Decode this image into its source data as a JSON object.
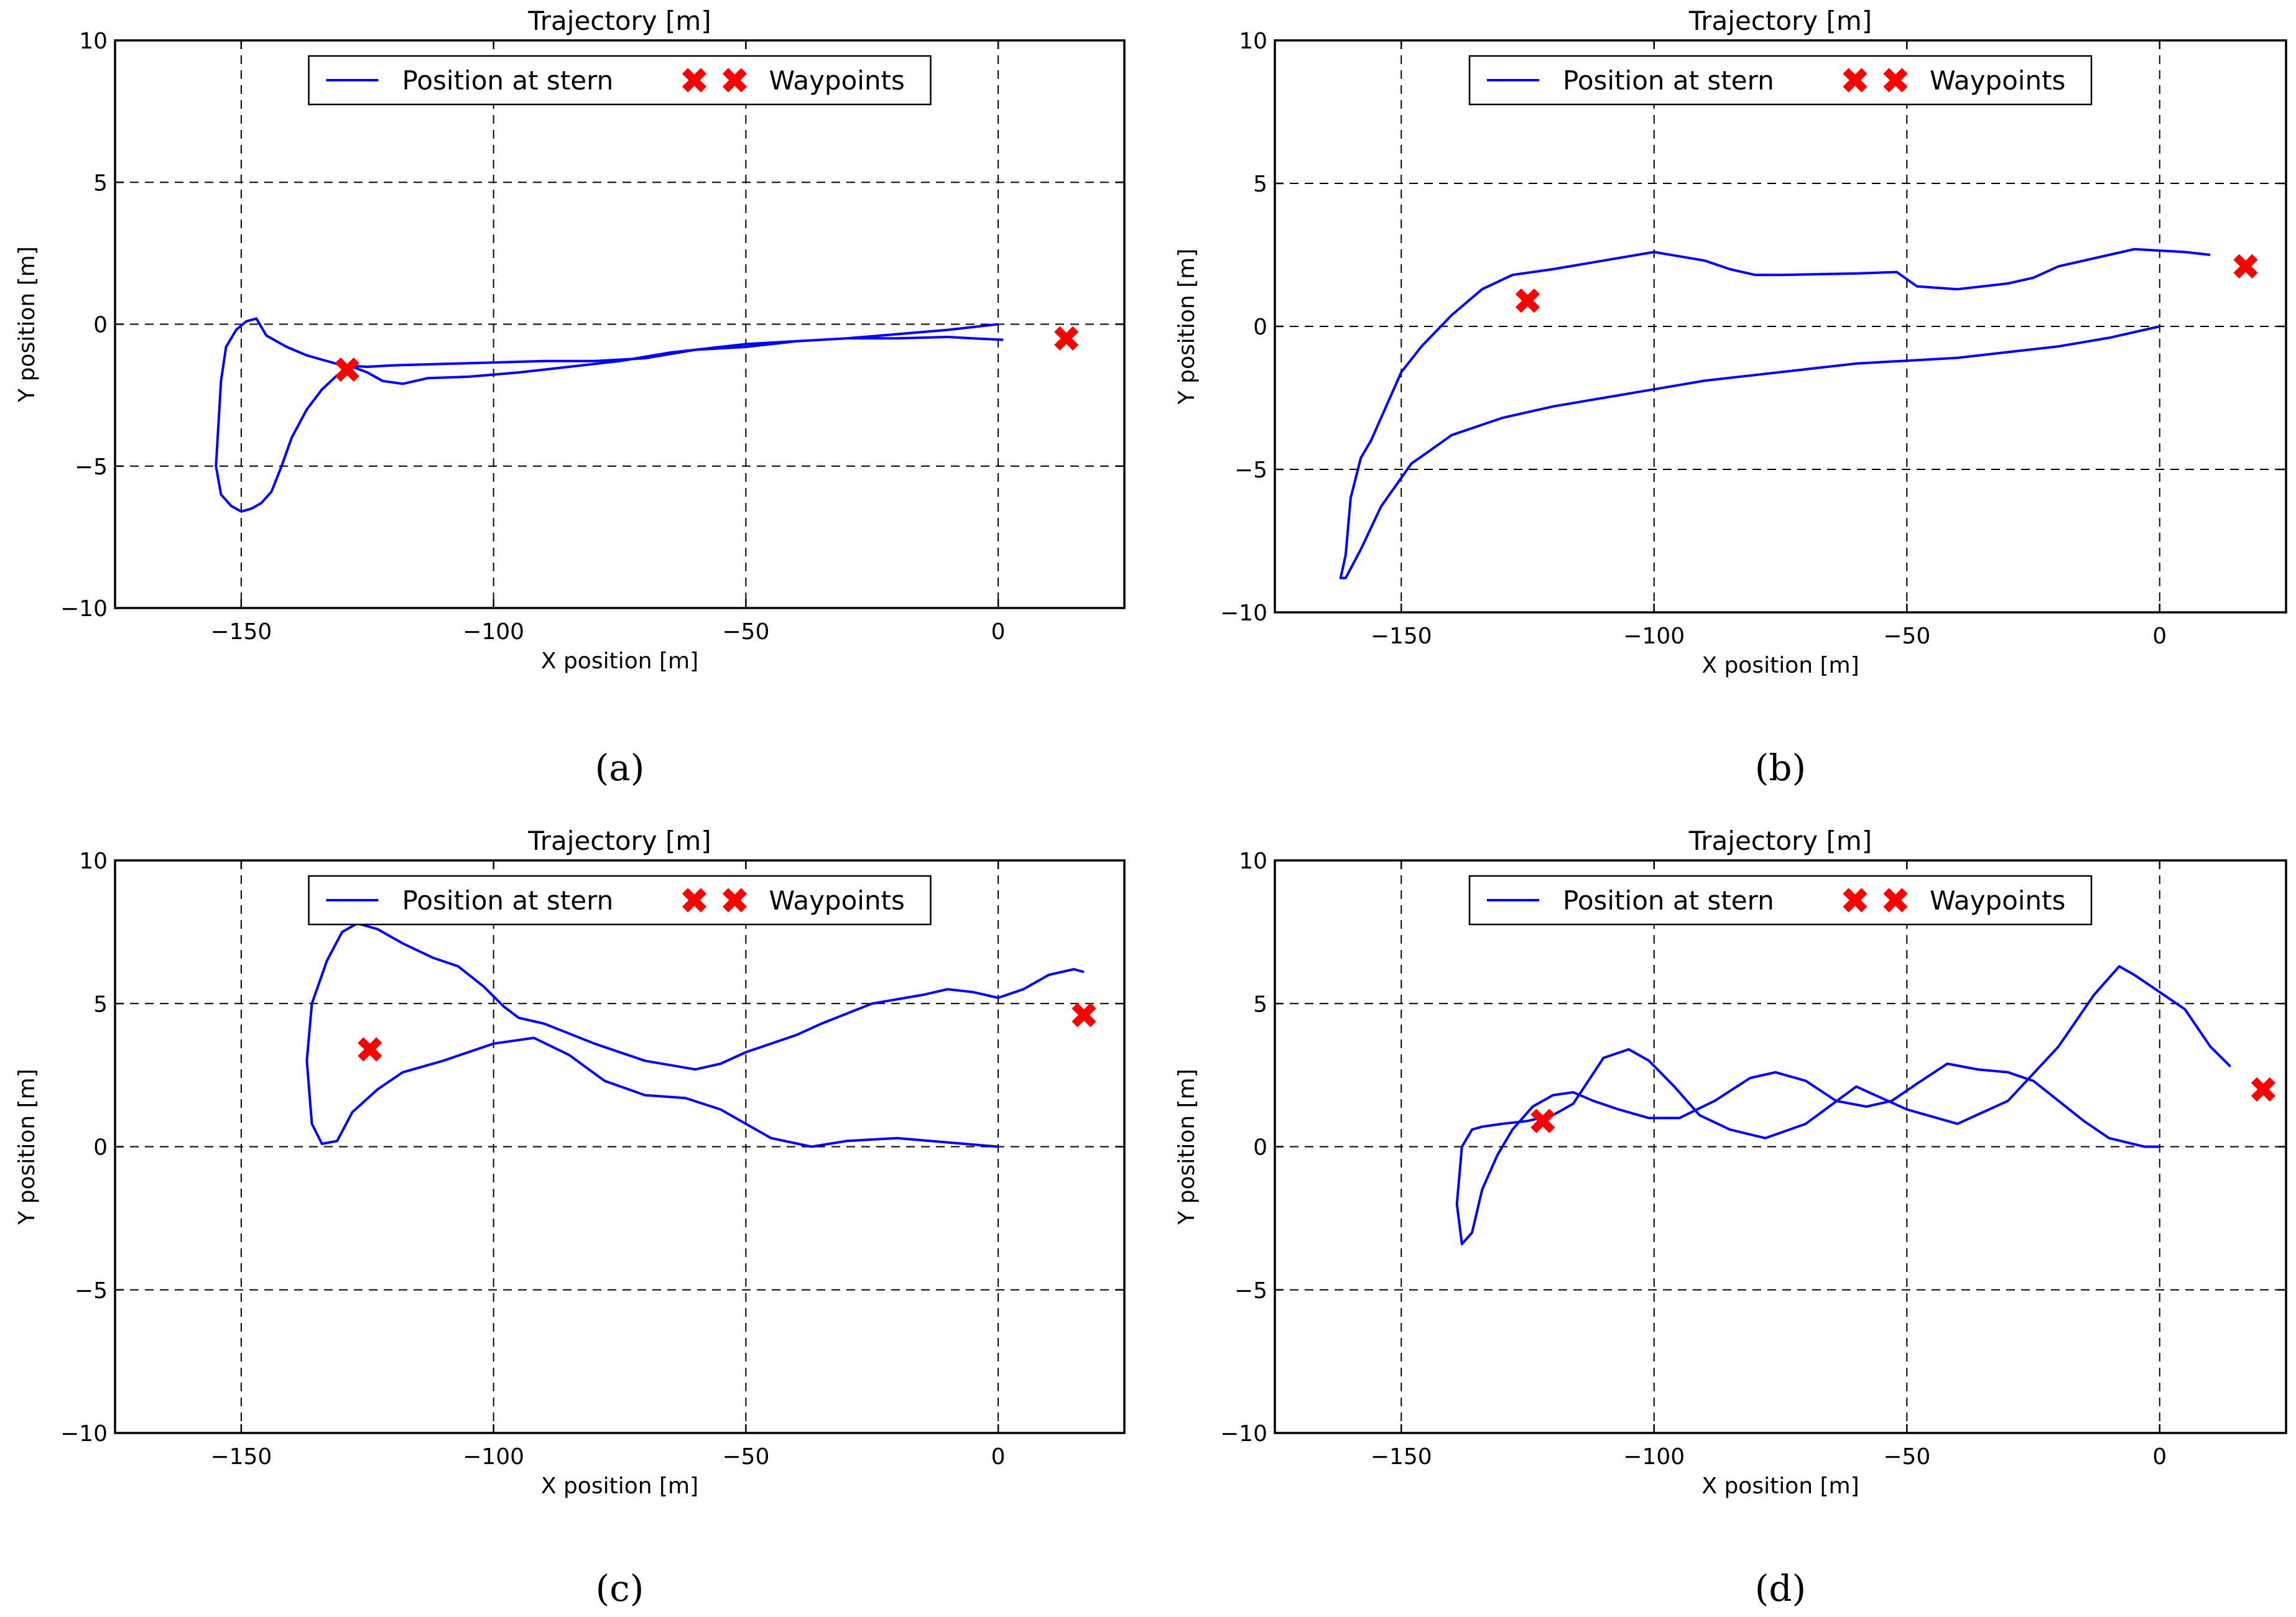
{
  "chart_data": [
    {
      "type": "line",
      "panel_label": "(a)",
      "title": "Trajectory [m]",
      "xlabel": "X position [m]",
      "ylabel": "Y position [m]",
      "xlim": [
        -175,
        25
      ],
      "ylim": [
        -10,
        10
      ],
      "xticks": [
        -150,
        -100,
        -50,
        0
      ],
      "yticks": [
        -10,
        -5,
        0,
        5,
        10
      ],
      "xtick_labels": [
        "−150",
        "−100",
        "−50",
        "0"
      ],
      "ytick_labels": [
        "−10",
        "−5",
        "0",
        "5",
        "10"
      ],
      "grid": true,
      "legend": {
        "placement": "top-center",
        "entries": [
          "Position at stern",
          "Waypoints"
        ]
      },
      "series": [
        {
          "name": "Position at stern",
          "color": "#0000ff",
          "x": [
            0,
            -10,
            -20,
            -30,
            -40,
            -50,
            -60,
            -70,
            -80,
            -90,
            -100,
            -110,
            -120,
            -125,
            -130,
            -133,
            -137,
            -141,
            -145,
            -147,
            -149,
            -151,
            -153,
            -154,
            -155,
            -154,
            -152,
            -150,
            -148,
            -146,
            -144,
            -142,
            -140,
            -137,
            -134,
            -131,
            -128,
            -125,
            -122,
            -118,
            -113,
            -105,
            -95,
            -85,
            -75,
            -65,
            -60,
            -50,
            -40,
            -30,
            -20,
            -10,
            -5,
            1
          ],
          "y": [
            0,
            -0.2,
            -0.35,
            -0.5,
            -0.6,
            -0.7,
            -0.9,
            -1.2,
            -1.3,
            -1.3,
            -1.35,
            -1.4,
            -1.45,
            -1.5,
            -1.45,
            -1.3,
            -1.1,
            -0.8,
            -0.4,
            0.2,
            0.1,
            -0.2,
            -0.8,
            -2.0,
            -5.0,
            -6.0,
            -6.4,
            -6.6,
            -6.5,
            -6.3,
            -5.9,
            -5.0,
            -4.0,
            -3.0,
            -2.3,
            -1.8,
            -1.5,
            -1.7,
            -2.0,
            -2.1,
            -1.9,
            -1.85,
            -1.7,
            -1.5,
            -1.3,
            -1.0,
            -0.9,
            -0.8,
            -0.6,
            -0.5,
            -0.5,
            -0.45,
            -0.5,
            -0.55
          ]
        },
        {
          "name": "Waypoints",
          "color": "#ff0000",
          "marker": "x-filled",
          "x": [
            -129,
            13.5
          ],
          "y": [
            -1.6,
            -0.5
          ]
        }
      ]
    },
    {
      "type": "line",
      "panel_label": "(b)",
      "title": "Trajectory [m]",
      "xlabel": "X position [m]",
      "ylabel": "Y position [m]",
      "xlim": [
        -175,
        25
      ],
      "ylim": [
        -10,
        10
      ],
      "xticks": [
        -150,
        -100,
        -50,
        0
      ],
      "yticks": [
        -10,
        -5,
        0,
        5,
        10
      ],
      "xtick_labels": [
        "−150",
        "−100",
        "−50",
        "0"
      ],
      "ytick_labels": [
        "−10",
        "−5",
        "0",
        "5",
        "10"
      ],
      "grid": true,
      "legend": {
        "placement": "top-center",
        "entries": [
          "Position at stern",
          "Waypoints"
        ]
      },
      "series": [
        {
          "name": "Position at stern",
          "color": "#0000ff",
          "x": [
            0,
            -10,
            -20,
            -30,
            -40,
            -50,
            -60,
            -70,
            -80,
            -90,
            -100,
            -110,
            -120,
            -130,
            -140,
            -148,
            -154,
            -158,
            -161,
            -162,
            -161,
            -160,
            -158,
            -156,
            -153,
            -150,
            -146,
            -140,
            -134,
            -128,
            -120,
            -110,
            -100,
            -90,
            -85,
            -80,
            -75,
            -60,
            -52,
            -48,
            -40,
            -30,
            -25,
            -20,
            -10,
            -5,
            0,
            5,
            10
          ],
          "y": [
            0,
            -0.4,
            -0.7,
            -0.9,
            -1.1,
            -1.2,
            -1.3,
            -1.5,
            -1.7,
            -1.9,
            -2.2,
            -2.5,
            -2.8,
            -3.2,
            -3.8,
            -4.8,
            -6.3,
            -7.8,
            -8.8,
            -8.8,
            -8.0,
            -6.0,
            -4.6,
            -4.0,
            -2.8,
            -1.6,
            -0.7,
            0.4,
            1.3,
            1.8,
            2.0,
            2.3,
            2.6,
            2.3,
            2.0,
            1.8,
            1.8,
            1.85,
            1.9,
            1.4,
            1.3,
            1.5,
            1.7,
            2.1,
            2.5,
            2.7,
            2.65,
            2.6,
            2.5
          ]
        },
        {
          "name": "Waypoints",
          "color": "#ff0000",
          "marker": "x-filled",
          "x": [
            -125,
            17
          ],
          "y": [
            0.9,
            2.1
          ]
        }
      ]
    },
    {
      "type": "line",
      "panel_label": "(c)",
      "title": "Trajectory [m]",
      "xlabel": "X position [m]",
      "ylabel": "Y position [m]",
      "xlim": [
        -175,
        25
      ],
      "ylim": [
        -10,
        10
      ],
      "xticks": [
        -150,
        -100,
        -50,
        0
      ],
      "yticks": [
        -10,
        -5,
        0,
        5,
        10
      ],
      "xtick_labels": [
        "−150",
        "−100",
        "−50",
        "0"
      ],
      "ytick_labels": [
        "−10",
        "−5",
        "0",
        "5",
        "10"
      ],
      "grid": true,
      "legend": {
        "placement": "top-center",
        "entries": [
          "Position at stern",
          "Waypoints"
        ]
      },
      "series": [
        {
          "name": "Position at stern",
          "color": "#0000ff",
          "x": [
            0,
            -10,
            -20,
            -30,
            -37,
            -45,
            -50,
            -55,
            -62,
            -70,
            -78,
            -85,
            -92,
            -100,
            -110,
            -118,
            -123,
            -128,
            -131,
            -134,
            -136,
            -137,
            -136,
            -133,
            -130,
            -127,
            -123,
            -118,
            -112,
            -107,
            -102,
            -98,
            -95,
            -90,
            -80,
            -70,
            -60,
            -55,
            -50,
            -45,
            -40,
            -35,
            -25,
            -15,
            -10,
            -5,
            0,
            5,
            10,
            15,
            17
          ],
          "y": [
            0,
            0.15,
            0.3,
            0.2,
            0.0,
            0.3,
            0.8,
            1.3,
            1.7,
            1.8,
            2.3,
            3.2,
            3.8,
            3.6,
            3.0,
            2.6,
            2.0,
            1.2,
            0.2,
            0.1,
            0.8,
            3.0,
            5.0,
            6.5,
            7.5,
            7.8,
            7.6,
            7.1,
            6.6,
            6.3,
            5.6,
            4.9,
            4.5,
            4.3,
            3.6,
            3.0,
            2.7,
            2.9,
            3.3,
            3.6,
            3.9,
            4.3,
            5.0,
            5.3,
            5.5,
            5.4,
            5.2,
            5.5,
            6.0,
            6.2,
            6.1
          ]
        },
        {
          "name": "Waypoints",
          "color": "#ff0000",
          "marker": "x-filled",
          "x": [
            -124.5,
            17
          ],
          "y": [
            3.4,
            4.6
          ]
        }
      ]
    },
    {
      "type": "line",
      "panel_label": "(d)",
      "title": "Trajectory [m]",
      "xlabel": "X position [m]",
      "ylabel": "Y position [m]",
      "xlim": [
        -175,
        25
      ],
      "ylim": [
        -10,
        10
      ],
      "xticks": [
        -150,
        -100,
        -50,
        0
      ],
      "yticks": [
        -10,
        -5,
        0,
        5,
        10
      ],
      "xtick_labels": [
        "−150",
        "−100",
        "−50",
        "0"
      ],
      "ytick_labels": [
        "−10",
        "−5",
        "0",
        "5",
        "10"
      ],
      "grid": true,
      "legend": {
        "placement": "top-center",
        "entries": [
          "Position at stern",
          "Waypoints"
        ]
      },
      "series": [
        {
          "name": "Position at stern",
          "color": "#0000ff",
          "x": [
            0,
            -3,
            -10,
            -15,
            -20,
            -25,
            -30,
            -36,
            -42,
            -48,
            -53,
            -58,
            -64,
            -70,
            -76,
            -81,
            -88,
            -95,
            -101,
            -107,
            -112,
            -116,
            -120,
            -124,
            -128,
            -131,
            -134,
            -136,
            -138,
            -139,
            -138,
            -136,
            -134,
            -130,
            -125,
            -120,
            -116,
            -113,
            -110,
            -105,
            -101,
            -96,
            -91,
            -85,
            -78,
            -70,
            -60,
            -50,
            -40,
            -30,
            -20,
            -13,
            -8,
            -5,
            0,
            5,
            10,
            14
          ],
          "y": [
            0,
            0.0,
            0.3,
            0.9,
            1.6,
            2.3,
            2.6,
            2.7,
            2.9,
            2.2,
            1.6,
            1.4,
            1.6,
            2.3,
            2.6,
            2.4,
            1.6,
            1.0,
            1.0,
            1.3,
            1.6,
            1.9,
            1.8,
            1.4,
            0.6,
            -0.3,
            -1.5,
            -3.0,
            -3.4,
            -2.0,
            0.0,
            0.6,
            0.7,
            0.8,
            0.9,
            1.1,
            1.5,
            2.3,
            3.1,
            3.4,
            3.0,
            2.1,
            1.1,
            0.6,
            0.3,
            0.8,
            2.1,
            1.3,
            0.8,
            1.6,
            3.5,
            5.3,
            6.3,
            6.0,
            5.4,
            4.8,
            3.5,
            2.8
          ]
        },
        {
          "name": "Waypoints",
          "color": "#ff0000",
          "marker": "x-filled",
          "x": [
            -122,
            20.5
          ],
          "y": [
            0.9,
            2.0
          ]
        }
      ]
    }
  ]
}
